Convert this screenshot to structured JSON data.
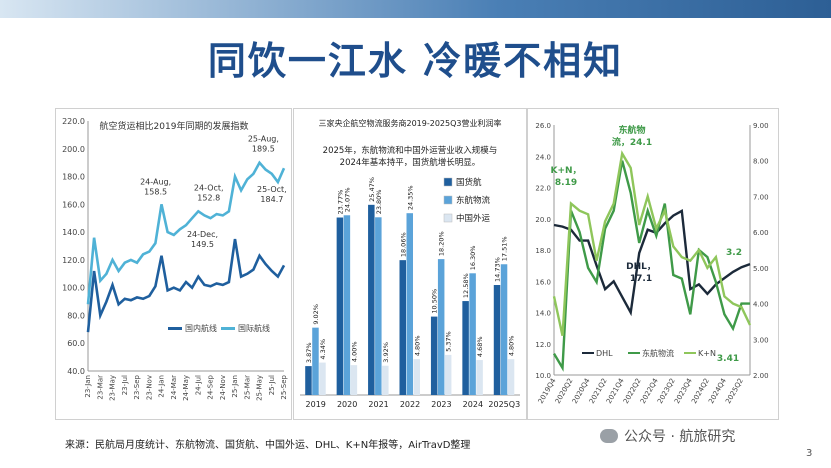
{
  "title": "同饮一江水  冷暖不相知",
  "source": "来源：民航局月度统计、东航物流、国货航、中国外运、DHL、K+N年报等，AirTravD整理",
  "watermark": "公众号 · 航旅研究",
  "page_number": "3",
  "chart_data": [
    {
      "type": "line",
      "title": "航空货运相比2019年同期的发展指数",
      "yticks": [
        "40.0",
        "60.0",
        "80.0",
        "100.0",
        "120.0",
        "140.0",
        "160.0",
        "180.0",
        "200.0",
        "220.0"
      ],
      "ylim": [
        40,
        220
      ],
      "xticks": [
        "23-Jan",
        "23-Mar",
        "23-May",
        "23-Jul",
        "23-Sep",
        "23-Nov",
        "24-Jan",
        "24-Mar",
        "24-May",
        "24-Jul",
        "24-Sep",
        "24-Nov",
        "25-Jan",
        "25-Mar",
        "25-May",
        "25-Jul",
        "25-Sep"
      ],
      "x_index": [
        0,
        1,
        2,
        3,
        4,
        5,
        6,
        7,
        8,
        9,
        10,
        11,
        12,
        13,
        14,
        15,
        16,
        17,
        18,
        19,
        20,
        21,
        22,
        23,
        24,
        25,
        26,
        27,
        28,
        29,
        30,
        31,
        32
      ],
      "series": [
        {
          "name": "国内航线",
          "color": "#1f5f9e",
          "values": [
            68,
            112,
            80,
            90,
            102,
            88,
            92,
            91,
            93,
            92,
            94,
            101,
            123,
            98,
            100,
            98,
            104,
            100,
            108,
            102,
            101,
            103,
            102,
            104,
            135,
            108,
            110,
            113,
            123,
            117,
            112,
            108,
            116
          ]
        },
        {
          "name": "国际航线",
          "color": "#4fb2d6",
          "values": [
            88,
            136,
            105,
            110,
            120,
            112,
            118,
            120,
            118,
            124,
            126,
            132,
            160,
            140,
            138,
            142,
            145,
            150,
            155,
            152,
            150,
            153,
            152,
            155,
            180,
            170,
            178,
            182,
            190,
            185,
            182,
            176,
            186
          ]
        }
      ],
      "annotations": [
        {
          "text": "25-Aug,",
          "value": "189.5"
        },
        {
          "text": "24-Oct,",
          "value": "152.8"
        },
        {
          "text": "24-Aug,",
          "value": "158.5"
        },
        {
          "text": "25-Oct,",
          "value": "184.7"
        },
        {
          "text": "24-Dec,",
          "value": "149.5"
        }
      ]
    },
    {
      "type": "bar",
      "title": "三家央企航空物流服务商2019-2025Q3营业利润率",
      "subtitle_lines": [
        "2025年，东航物流和中国外运营业收入规模与",
        "2024年基本持平，国货航增长明显。"
      ],
      "categories": [
        "2019",
        "2020",
        "2021",
        "2022",
        "2023",
        "2024",
        "2025Q3"
      ],
      "series": [
        {
          "name": "国货航",
          "color": "#1f5f9e",
          "values": [
            3.87,
            23.77,
            25.47,
            18.06,
            10.5,
            12.58,
            14.73
          ],
          "labels": [
            "3.87%",
            "23.77%",
            "25.47%",
            "18.06%",
            "10.50%",
            "12.58%",
            "14.73%"
          ]
        },
        {
          "name": "东航物流",
          "color": "#5ba3d9",
          "values": [
            9.02,
            24.07,
            23.8,
            24.35,
            18.2,
            16.3,
            17.51
          ],
          "labels": [
            "9.02%",
            "24.07%",
            "23.80%",
            "24.35%",
            "18.20%",
            "16.30%",
            "17.51%"
          ]
        },
        {
          "name": "中国外运",
          "color": "#dbe6f1",
          "values": [
            4.34,
            4.0,
            3.92,
            4.8,
            5.37,
            4.68,
            4.8
          ],
          "labels": [
            "4.34%",
            "4.00%",
            "3.92%",
            "4.80%",
            "5.37%",
            "4.68%",
            "4.80%"
          ]
        }
      ],
      "ylim": [
        0,
        30
      ]
    },
    {
      "type": "line",
      "yticks_left": [
        "10.0",
        "12.0",
        "14.0",
        "16.0",
        "18.0",
        "20.0",
        "22.0",
        "24.0",
        "26.0"
      ],
      "ylim_left": [
        10,
        26
      ],
      "yticks_right": [
        "2.00",
        "3.00",
        "4.00",
        "5.00",
        "6.00",
        "7.00",
        "8.00",
        "9.00"
      ],
      "ylim_right": [
        2,
        9
      ],
      "xticks": [
        "2019Q4",
        "2020Q2",
        "2020Q4",
        "2021Q2",
        "2021Q4",
        "2022Q2",
        "2022Q4",
        "2023Q2",
        "2023Q4",
        "2024Q2",
        "2024Q4",
        "2025Q2"
      ],
      "x_index": [
        0,
        1,
        2,
        3,
        4,
        5,
        6,
        7,
        8,
        9,
        10,
        11,
        12,
        13,
        14,
        15,
        16,
        17,
        18,
        19,
        20,
        21,
        22,
        23
      ],
      "series": [
        {
          "name": "DHL",
          "axis": "left",
          "color": "#1c2a3a",
          "values": [
            19.6,
            19.5,
            19.3,
            18.6,
            18.6,
            17.0,
            15.5,
            16.0,
            15.0,
            14.0,
            17.8,
            19.3,
            19.1,
            19.7,
            20.2,
            20.5,
            15.5,
            15.8,
            15.2,
            15.8,
            16.2,
            16.6,
            16.9,
            17.1
          ]
        },
        {
          "name": "东航物流",
          "axis": "right",
          "color": "#3f9a48",
          "values": [
            2.6,
            2.2,
            6.6,
            6.0,
            5.0,
            4.6,
            6.1,
            6.6,
            8.0,
            7.1,
            5.7,
            6.6,
            5.9,
            6.8,
            4.8,
            4.7,
            3.7,
            5.5,
            5.3,
            4.6,
            3.7,
            3.3,
            4.0,
            4.0
          ]
        },
        {
          "name": "K+N",
          "axis": "right",
          "color": "#8fc65b",
          "values": [
            4.2,
            3.1,
            6.8,
            6.6,
            6.5,
            5.2,
            6.3,
            6.8,
            8.2,
            7.8,
            6.2,
            7.0,
            6.1,
            6.6,
            5.6,
            5.3,
            5.2,
            5.5,
            5.0,
            5.3,
            4.2,
            4.0,
            3.9,
            3.4
          ]
        }
      ],
      "annotations": [
        {
          "text": "K+N，",
          "value": "8.19"
        },
        {
          "text": "东航物",
          "value": "流，24.1"
        },
        {
          "text": "DHL，",
          "value": "17.1"
        },
        {
          "text": "",
          "value": "3.2"
        },
        {
          "text": "",
          "value": "3.41"
        }
      ]
    }
  ]
}
